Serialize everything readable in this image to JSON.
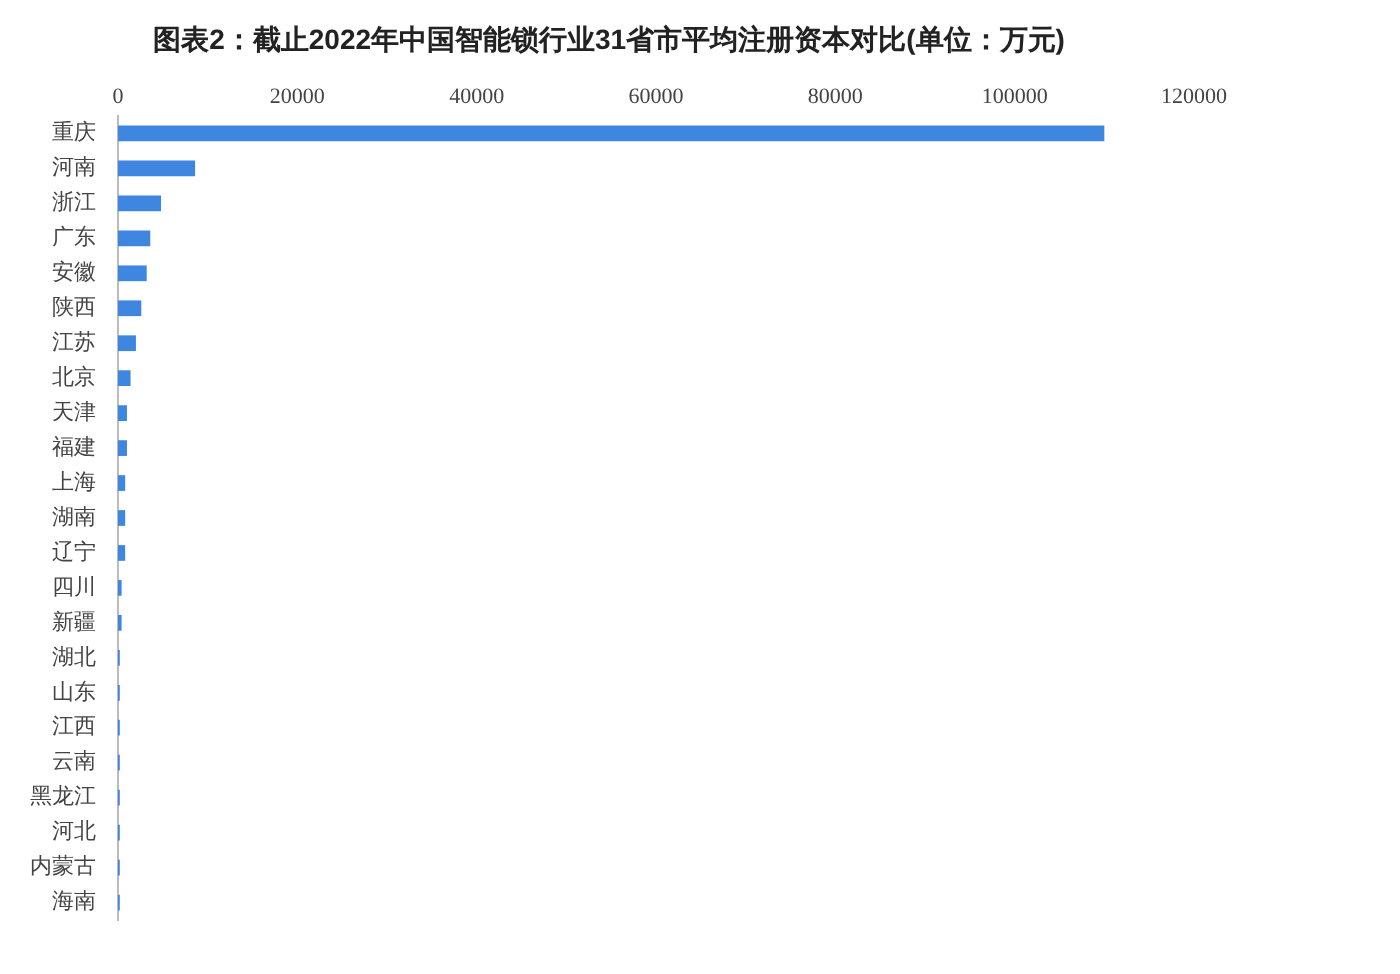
{
  "chart_data": {
    "type": "bar",
    "orientation": "horizontal",
    "title": "图表2：截止2022年中国智能锁行业31省市平均注册资本对比(单位：万元)",
    "categories": [
      "重庆",
      "河南",
      "浙江",
      "广东",
      "安徽",
      "陕西",
      "江苏",
      "北京",
      "天津",
      "福建",
      "上海",
      "湖南",
      "辽宁",
      "四川",
      "新疆",
      "湖北",
      "山东",
      "江西",
      "云南",
      "黑龙江",
      "河北",
      "内蒙古",
      "海南"
    ],
    "values": [
      110000,
      8600,
      4800,
      3600,
      3200,
      2600,
      2000,
      1400,
      1000,
      1000,
      800,
      800,
      800,
      400,
      400,
      200,
      200,
      200,
      200,
      200,
      200,
      200,
      200
    ],
    "color": "#3f86e0",
    "xlim": [
      0,
      120000
    ],
    "xticks": [
      0,
      20000,
      40000,
      60000,
      80000,
      100000,
      120000
    ],
    "grid": false,
    "legend": false
  }
}
